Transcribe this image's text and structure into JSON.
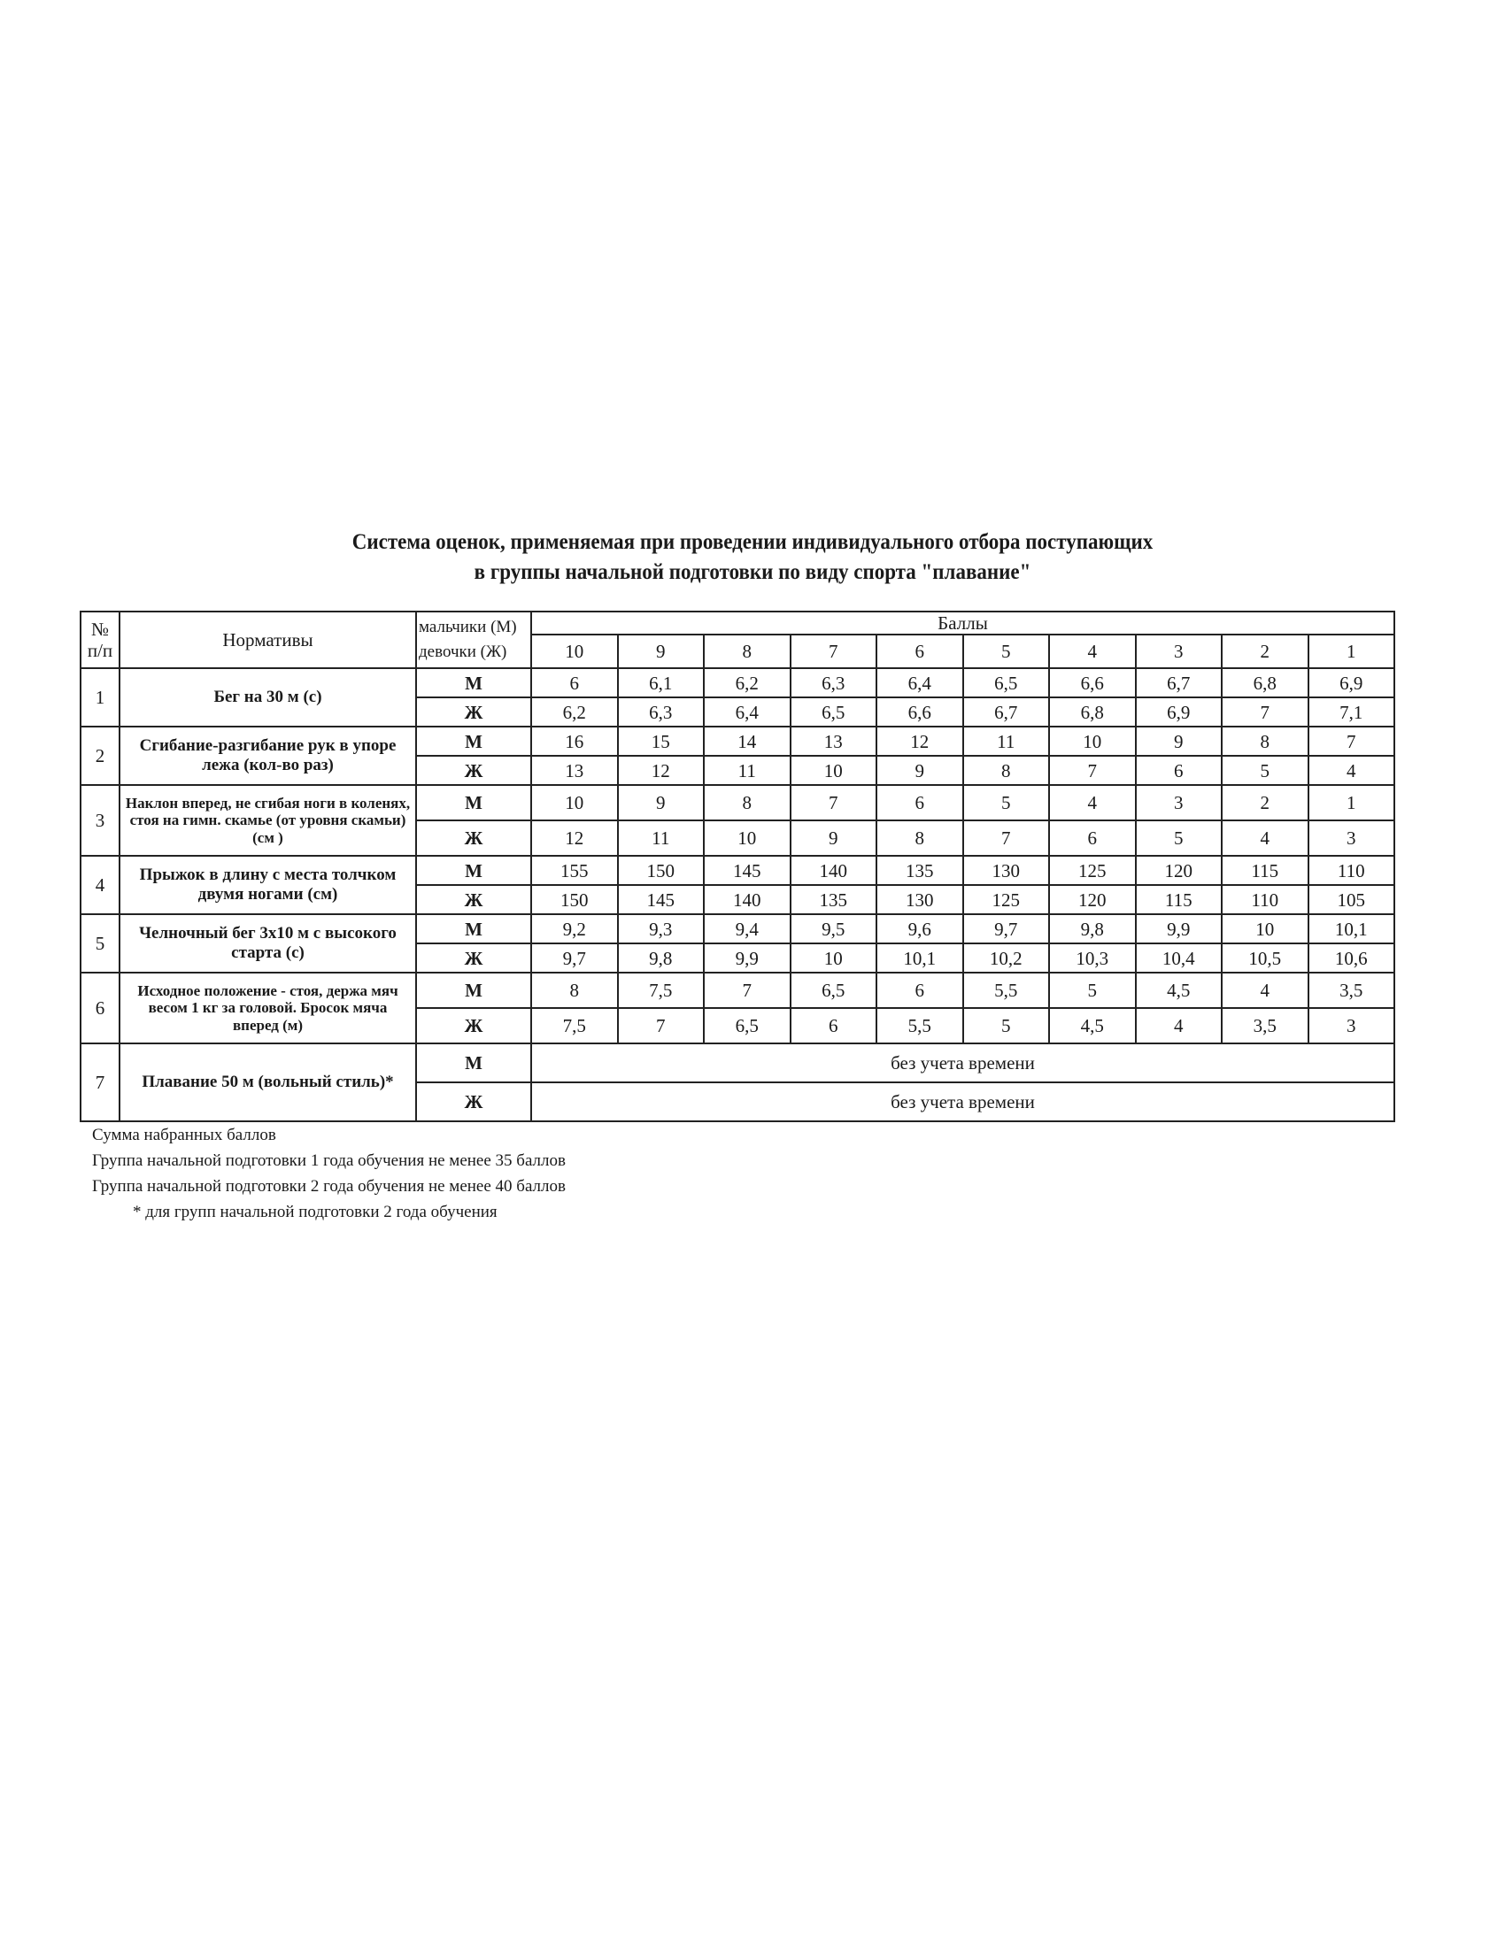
{
  "title": {
    "line1": "Система оценок, применяемая при проведении индивидуального отбора поступающих",
    "line2": "в группы начальной подготовки по виду спорта \"плавание\""
  },
  "table": {
    "header": {
      "no": "№ п/п",
      "norms": "Нормативы",
      "sex_m": "мальчики (М)",
      "sex_f": "девочки (Ж)",
      "points": "Баллы",
      "scores": [
        "10",
        "9",
        "8",
        "7",
        "6",
        "5",
        "4",
        "3",
        "2",
        "1"
      ]
    },
    "rows": [
      {
        "no": "1",
        "name": "Бег на 30 м (с)",
        "m": [
          "6",
          "6,1",
          "6,2",
          "6,3",
          "6,4",
          "6,5",
          "6,6",
          "6,7",
          "6,8",
          "6,9"
        ],
        "f": [
          "6,2",
          "6,3",
          "6,4",
          "6,5",
          "6,6",
          "6,7",
          "6,8",
          "6,9",
          "7",
          "7,1"
        ]
      },
      {
        "no": "2",
        "name": "Сгибание-разгибание рук в упоре лежа (кол-во раз)",
        "m": [
          "16",
          "15",
          "14",
          "13",
          "12",
          "11",
          "10",
          "9",
          "8",
          "7"
        ],
        "f": [
          "13",
          "12",
          "11",
          "10",
          "9",
          "8",
          "7",
          "6",
          "5",
          "4"
        ]
      },
      {
        "no": "3",
        "name": "Наклон вперед, не сгибая ноги в коленях, стоя на гимн. скамье (от уровня скамьи) (см )",
        "m": [
          "10",
          "9",
          "8",
          "7",
          "6",
          "5",
          "4",
          "3",
          "2",
          "1"
        ],
        "f": [
          "12",
          "11",
          "10",
          "9",
          "8",
          "7",
          "6",
          "5",
          "4",
          "3"
        ]
      },
      {
        "no": "4",
        "name": "Прыжок в длину с места толчком двумя ногами (см)",
        "m": [
          "155",
          "150",
          "145",
          "140",
          "135",
          "130",
          "125",
          "120",
          "115",
          "110"
        ],
        "f": [
          "150",
          "145",
          "140",
          "135",
          "130",
          "125",
          "120",
          "115",
          "110",
          "105"
        ]
      },
      {
        "no": "5",
        "name": "Челночный бег 3х10 м с высокого старта (с)",
        "m": [
          "9,2",
          "9,3",
          "9,4",
          "9,5",
          "9,6",
          "9,7",
          "9,8",
          "9,9",
          "10",
          "10,1"
        ],
        "f": [
          "9,7",
          "9,8",
          "9,9",
          "10",
          "10,1",
          "10,2",
          "10,3",
          "10,4",
          "10,5",
          "10,6"
        ]
      },
      {
        "no": "6",
        "name": "Исходное положение - стоя, держа мяч весом 1 кг за головой. Бросок мяча вперед (м)",
        "m": [
          "8",
          "7,5",
          "7",
          "6,5",
          "6",
          "5,5",
          "5",
          "4,5",
          "4",
          "3,5"
        ],
        "f": [
          "7,5",
          "7",
          "6,5",
          "6",
          "5,5",
          "5",
          "4,5",
          "4",
          "3,5",
          "3"
        ]
      },
      {
        "no": "7",
        "name": "Плавание 50 м (вольный стиль)*",
        "m_text": "без учета времени",
        "f_text": "без учета времени"
      }
    ],
    "sex_labels": {
      "m": "М",
      "f": "Ж"
    }
  },
  "footer": {
    "line1": "Сумма набранных баллов",
    "line2": "Группа начальной подготовки 1 года обучения не менее 35 баллов",
    "line3": "Группа начальной подготовки 2 года обучения не менее 40 баллов",
    "note": "* для групп начальной подготовки 2 года обучения"
  }
}
